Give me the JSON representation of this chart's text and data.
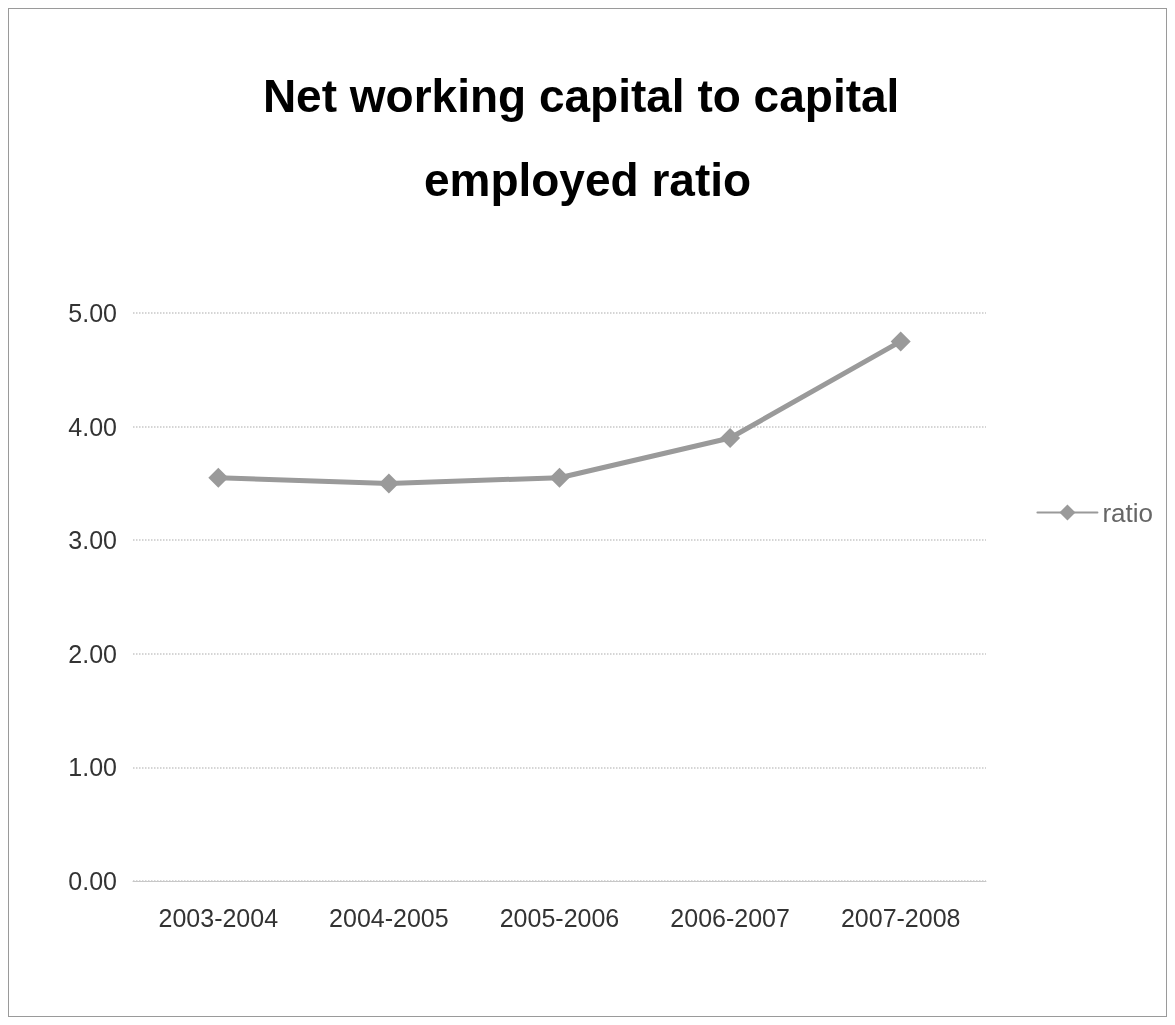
{
  "chart_data": {
    "type": "line",
    "title": "Net working capital to capital employed ratio",
    "categories": [
      "2003-2004",
      "2004-2005",
      "2005-2006",
      "2006-2007",
      "2007-2008"
    ],
    "series": [
      {
        "name": "ratio",
        "color": "#9a9a9a",
        "values": [
          3.55,
          3.5,
          3.55,
          3.9,
          4.75
        ]
      }
    ],
    "ylim": [
      0,
      5
    ],
    "yticks": [
      {
        "value": 0,
        "label": "0.00"
      },
      {
        "value": 1,
        "label": "1.00"
      },
      {
        "value": 2,
        "label": "2.00"
      },
      {
        "value": 3,
        "label": "3.00"
      },
      {
        "value": 4,
        "label": "4.00"
      },
      {
        "value": 5,
        "label": "5.00"
      }
    ],
    "grid": "y",
    "legend": "right",
    "marker": "diamond",
    "line_style": "solid"
  }
}
